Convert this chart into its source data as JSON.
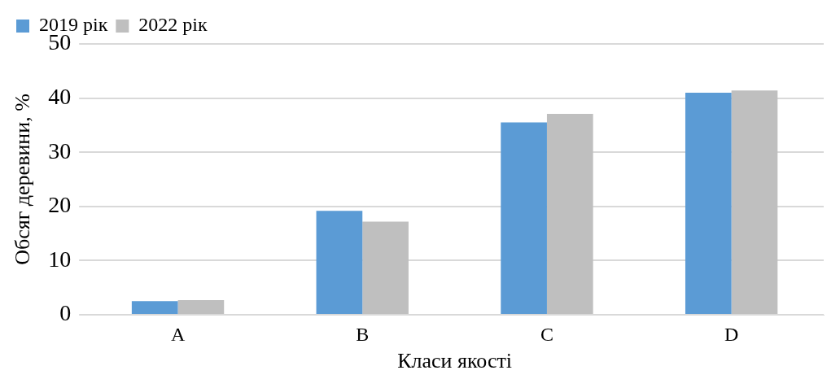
{
  "chart_data": {
    "type": "bar",
    "xlabel": "Класи якості",
    "ylabel": "Обсяг деревини, %",
    "categories": [
      "A",
      "B",
      "C",
      "D"
    ],
    "series": [
      {
        "name": "2019 рік",
        "color": "#5b9bd5",
        "values": [
          2.5,
          19.2,
          35.5,
          41
        ]
      },
      {
        "name": "2022 рік",
        "color": "#bfbfbf",
        "values": [
          2.7,
          17.2,
          37.1,
          41.4
        ]
      }
    ],
    "ylim": [
      0,
      50
    ],
    "yticks": [
      0,
      10,
      20,
      30,
      40,
      50
    ],
    "grid": "y",
    "legend": "top left"
  }
}
